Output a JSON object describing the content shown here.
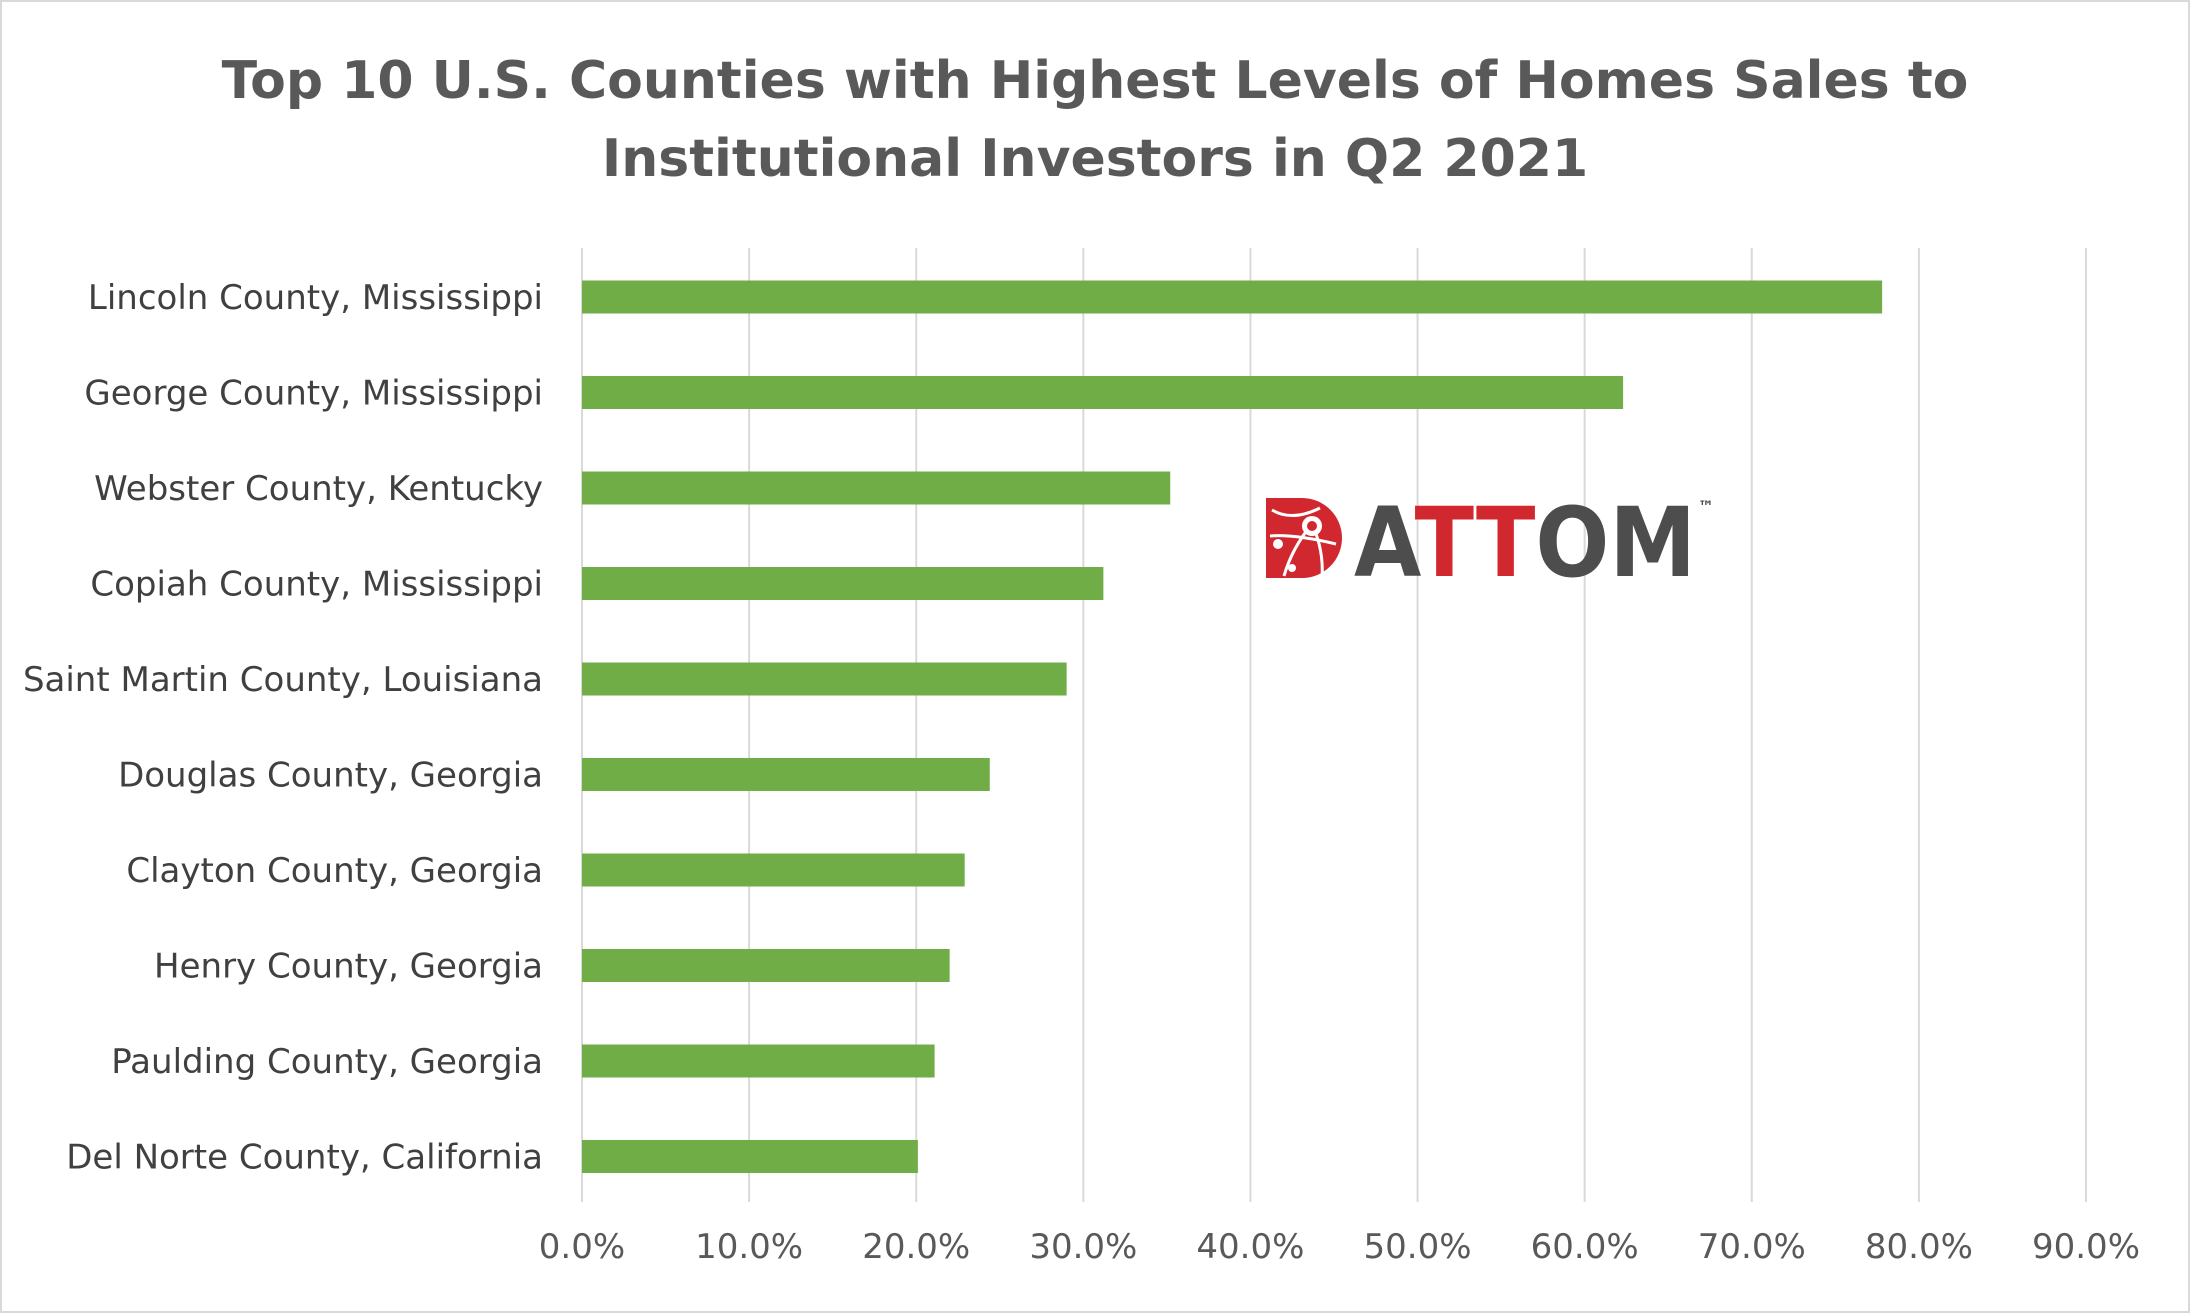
{
  "chart_data": {
    "type": "bar",
    "orientation": "horizontal",
    "title": "Top 10 U.S. Counties with Highest Levels of Homes Sales to Institutional Investors in Q2 2021",
    "title_lines": [
      "Top 10 U.S. Counties with Highest Levels of Homes Sales to",
      "Institutional Investors in Q2 2021"
    ],
    "categories": [
      "Lincoln County, Mississippi",
      "George County, Mississippi",
      "Webster County, Kentucky",
      "Copiah County, Mississippi",
      "Saint Martin County, Louisiana",
      "Douglas County, Georgia",
      "Clayton County, Georgia",
      "Henry County, Georgia",
      "Paulding County, Georgia",
      "Del Norte County, California"
    ],
    "values": [
      77.8,
      62.3,
      35.2,
      31.2,
      29.0,
      24.4,
      22.9,
      22.0,
      21.1,
      20.1
    ],
    "xlim": [
      0,
      90
    ],
    "xticks": [
      0,
      10,
      20,
      30,
      40,
      50,
      60,
      70,
      80,
      90
    ],
    "xtick_labels": [
      "0.0%",
      "10.0%",
      "20.0%",
      "30.0%",
      "40.0%",
      "50.0%",
      "60.0%",
      "70.0%",
      "80.0%",
      "90.0%"
    ],
    "xlabel": "",
    "ylabel": "",
    "grid": "vertical",
    "legend": "none",
    "bar_color": "#70ad47",
    "grid_color": "#d9d9d9"
  },
  "logo": {
    "text": "ATTOM",
    "trademark": "™",
    "brand_red": "#d0282e",
    "brand_gray": "#4d4d4d",
    "icon": "globe-icon"
  }
}
